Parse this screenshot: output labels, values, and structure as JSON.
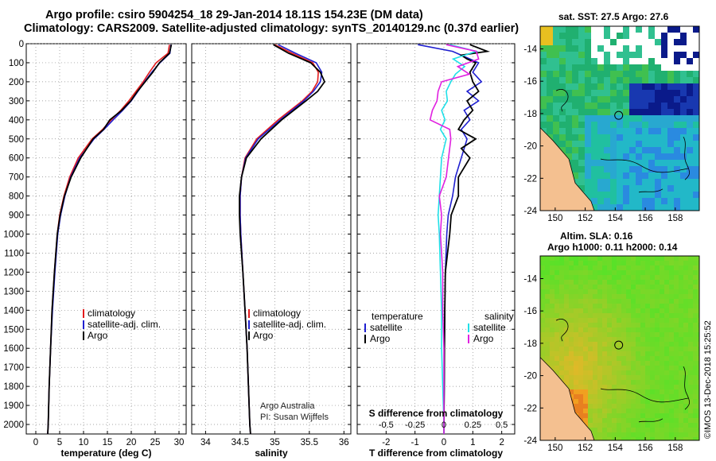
{
  "header": {
    "line1": "Argo profile: csiro 5904254_18 29-Jan-2014 18.11S 154.23E (DM data)",
    "line2": "Climatology: CARS2009. Satellite-adjusted climatology: synTS_20140129.nc (0.37d earlier)"
  },
  "colors": {
    "climatology": "#e31a1c",
    "satellite": "#1f1fd0",
    "argo": "#000000",
    "sat_salinity": "#20e0e8",
    "argo_salinity": "#e020e0"
  },
  "chart_data": [
    {
      "type": "line",
      "name": "temperature",
      "xlabel": "temperature (deg C)",
      "ylabel": "",
      "xlim": [
        -2,
        31.5
      ],
      "ylim": [
        2050,
        0
      ],
      "xticks": [
        "0",
        "5",
        "10",
        "15",
        "20",
        "25",
        "30"
      ],
      "yticks": [
        "0",
        "100",
        "200",
        "300",
        "400",
        "500",
        "600",
        "700",
        "800",
        "900",
        "1000",
        "1100",
        "1200",
        "1300",
        "1400",
        "1500",
        "1600",
        "1700",
        "1800",
        "1900",
        "2000"
      ],
      "legend": [
        "climatology",
        "satellite-adj. clim.",
        "Argo"
      ],
      "annotation": "",
      "series": [
        {
          "name": "climatology",
          "depth": [
            5,
            50,
            100,
            150,
            200,
            250,
            300,
            350,
            400,
            450,
            500,
            600,
            700,
            800,
            900,
            1000,
            1200,
            1400,
            1600,
            1800,
            2000,
            2050
          ],
          "values": [
            28.0,
            27.7,
            25.2,
            23.8,
            22.5,
            21.0,
            19.5,
            17.8,
            15.8,
            14.0,
            11.8,
            8.9,
            7.1,
            5.9,
            5.0,
            4.5,
            3.9,
            3.4,
            3.1,
            2.8,
            2.6,
            2.5
          ]
        },
        {
          "name": "satellite-adj. clim.",
          "depth": [
            5,
            50,
            100,
            150,
            200,
            250,
            300,
            350,
            400,
            450,
            500,
            600,
            700,
            800,
            900,
            1000,
            1200,
            1400,
            1600,
            1800,
            2000,
            2050
          ],
          "values": [
            28.3,
            28.1,
            26.0,
            24.3,
            22.8,
            21.4,
            20.0,
            18.2,
            16.2,
            14.3,
            12.2,
            9.2,
            7.3,
            6.1,
            5.2,
            4.6,
            4.0,
            3.5,
            3.1,
            2.8,
            2.6,
            2.5
          ]
        },
        {
          "name": "Argo",
          "depth": [
            5,
            50,
            100,
            150,
            200,
            250,
            300,
            350,
            400,
            450,
            500,
            600,
            700,
            800,
            900,
            1000,
            1200,
            1400,
            1600,
            1800,
            2000,
            2050
          ],
          "values": [
            28.4,
            28.0,
            25.9,
            24.5,
            22.9,
            21.3,
            19.9,
            18.0,
            15.5,
            14.2,
            12.0,
            9.4,
            7.4,
            6.0,
            5.1,
            4.5,
            3.9,
            3.4,
            3.1,
            2.8,
            2.6,
            2.5
          ]
        }
      ]
    },
    {
      "type": "line",
      "name": "salinity",
      "xlabel": "salinity",
      "ylabel": "",
      "xlim": [
        33.8,
        36.1
      ],
      "ylim": [
        2050,
        0
      ],
      "xticks": [
        "34",
        "34.5",
        "35",
        "35.5",
        "36"
      ],
      "legend": [
        "climatology",
        "satellite-adj. clim.",
        "Argo"
      ],
      "annotation": [
        "Argo Australia",
        "PI: Susan Wijffels"
      ],
      "series": [
        {
          "name": "climatology",
          "depth": [
            5,
            50,
            100,
            150,
            200,
            250,
            300,
            400,
            500,
            600,
            700,
            800,
            900,
            1000,
            1200,
            1400,
            1600,
            1800,
            2000,
            2050
          ],
          "values": [
            35.0,
            35.25,
            35.55,
            35.63,
            35.62,
            35.54,
            35.4,
            35.05,
            34.74,
            34.57,
            34.52,
            34.5,
            34.5,
            34.51,
            34.54,
            34.57,
            34.6,
            34.62,
            34.64,
            34.65
          ]
        },
        {
          "name": "satellite-adj. clim.",
          "depth": [
            5,
            50,
            100,
            150,
            200,
            250,
            300,
            400,
            500,
            600,
            700,
            800,
            900,
            1000,
            1200,
            1400,
            1600,
            1800,
            2000,
            2050
          ],
          "values": [
            35.05,
            35.3,
            35.6,
            35.68,
            35.66,
            35.56,
            35.42,
            35.08,
            34.76,
            34.58,
            34.52,
            34.5,
            34.5,
            34.51,
            34.54,
            34.57,
            34.6,
            34.62,
            34.64,
            34.65
          ]
        },
        {
          "name": "Argo",
          "depth": [
            5,
            50,
            100,
            150,
            200,
            250,
            300,
            400,
            500,
            600,
            700,
            800,
            900,
            1000,
            1200,
            1400,
            1600,
            1800,
            2000,
            2050
          ],
          "values": [
            34.98,
            35.2,
            35.52,
            35.66,
            35.72,
            35.62,
            35.45,
            35.1,
            34.8,
            34.59,
            34.52,
            34.49,
            34.49,
            34.5,
            34.54,
            34.57,
            34.6,
            34.62,
            34.64,
            34.65
          ]
        }
      ]
    },
    {
      "type": "line",
      "name": "difference",
      "xlabel": "T difference from climatology",
      "xlabel2": "S difference from climatology",
      "xlim": [
        -3.0,
        2.45
      ],
      "ylim": [
        2050,
        0
      ],
      "xticks": [
        "-2",
        "-1",
        "0",
        "1",
        "2"
      ],
      "xticks2": [
        "-0.5",
        "-0.25",
        "0",
        "0.25",
        "0.5"
      ],
      "legend_left_title": "temperature",
      "legend_right_title": "salinity",
      "legend_left": [
        "satellite",
        "Argo"
      ],
      "legend_right": [
        "satellite",
        "Argo"
      ],
      "series": [
        {
          "name": "T satellite",
          "depth": [
            5,
            40,
            100,
            150,
            200,
            250,
            300,
            350,
            400,
            450,
            500,
            600,
            700,
            800,
            900,
            1000,
            1200,
            1400,
            1600,
            1800,
            2000,
            2050
          ],
          "values": [
            -0.9,
            0.3,
            1.2,
            1.0,
            1.3,
            0.8,
            1.2,
            0.7,
            0.9,
            0.6,
            0.8,
            0.6,
            0.4,
            0.3,
            0.15,
            0.1,
            0.05,
            0.03,
            0.02,
            0.01,
            0.0,
            0.0
          ]
        },
        {
          "name": "T Argo",
          "depth": [
            5,
            40,
            60,
            80,
            100,
            150,
            200,
            250,
            300,
            350,
            400,
            450,
            500,
            550,
            600,
            700,
            800,
            900,
            1000,
            1200,
            1400,
            1600,
            1800,
            2000,
            2050
          ],
          "values": [
            0.9,
            1.5,
            0.6,
            0.8,
            1.1,
            0.9,
            1.0,
            1.2,
            0.8,
            1.0,
            0.7,
            0.5,
            1.1,
            0.6,
            0.9,
            0.5,
            0.5,
            0.25,
            0.2,
            0.05,
            0.03,
            0.02,
            0.01,
            0.0,
            0.0
          ]
        },
        {
          "name": "S satellite",
          "depth": [
            5,
            40,
            80,
            120,
            160,
            200,
            250,
            300,
            350,
            400,
            450,
            500,
            600,
            700,
            800,
            900,
            1000,
            1200,
            1400,
            1600,
            1800,
            2000,
            2050
          ],
          "values": [
            0.05,
            0.28,
            0.08,
            0.18,
            0.1,
            0.06,
            0.02,
            0.03,
            -0.02,
            0.01,
            -0.03,
            0.02,
            -0.02,
            -0.03,
            -0.04,
            -0.05,
            -0.04,
            -0.03,
            -0.02,
            -0.02,
            -0.01,
            0.0,
            0.0
          ]
        },
        {
          "name": "S Argo",
          "depth": [
            5,
            40,
            80,
            120,
            160,
            200,
            250,
            300,
            350,
            400,
            450,
            500,
            600,
            700,
            800,
            900,
            1000,
            1200,
            1400,
            1600,
            1800,
            2000,
            2050
          ],
          "values": [
            0.02,
            0.28,
            0.3,
            0.12,
            0.22,
            -0.02,
            -0.05,
            -0.06,
            -0.1,
            -0.12,
            0.05,
            0.06,
            0.04,
            0.02,
            -0.04,
            -0.02,
            -0.03,
            -0.01,
            -0.01,
            0.0,
            0.0,
            0.0,
            0.0
          ]
        }
      ]
    },
    {
      "type": "heatmap",
      "name": "SST map",
      "title": "sat. SST: 27.5 Argo: 27.6",
      "xticks": [
        "150",
        "152",
        "154",
        "156",
        "158"
      ],
      "yticks": [
        "-14",
        "-16",
        "-18",
        "-20",
        "-22",
        "-24"
      ],
      "argo_location": [
        154.23,
        -18.11
      ]
    },
    {
      "type": "heatmap",
      "name": "SLA map",
      "title": "Altim. SLA: 0.16",
      "subtitle": "Argo h1000: 0.11 h2000: 0.14",
      "xticks": [
        "150",
        "152",
        "154",
        "156",
        "158"
      ],
      "yticks": [
        "-14",
        "-16",
        "-18",
        "-20",
        "-22",
        "-24"
      ],
      "argo_location": [
        154.23,
        -18.11
      ]
    }
  ],
  "footer": {
    "credit": "©IMOS 13-Dec-2018 15:25:52"
  }
}
